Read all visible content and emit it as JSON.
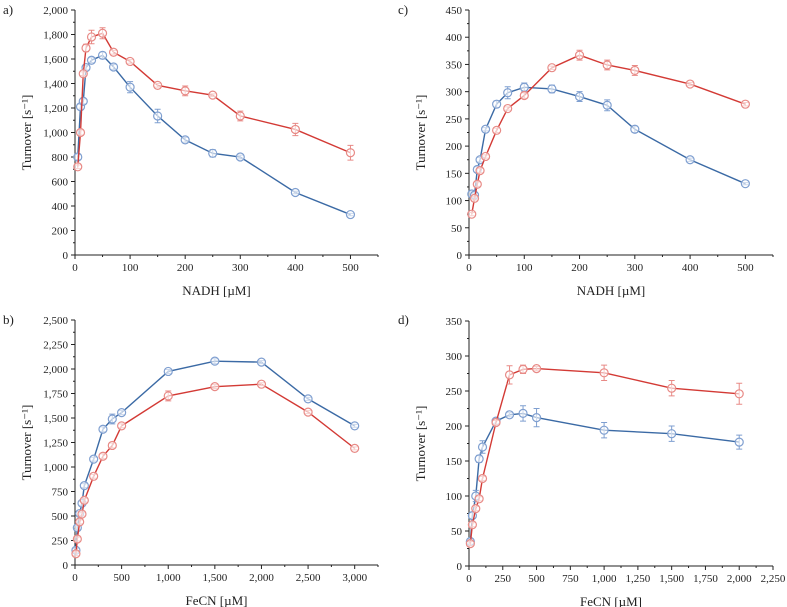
{
  "colors": {
    "blue": "#3b6aa5",
    "red": "#d33a35",
    "blue_marker": "#7f9fd0",
    "red_marker": "#e88a86"
  },
  "chart_data": [
    {
      "panel_label": "a)",
      "type": "line",
      "xlabel": "NADH [µM]",
      "ylabel": "Turnover [s⁻¹]",
      "xlim": [
        0,
        550
      ],
      "ylim": [
        0,
        2000
      ],
      "xticks": [
        0,
        100,
        200,
        300,
        400,
        500
      ],
      "xtick_labels": [
        "0",
        "100",
        "200",
        "300",
        "400",
        "500"
      ],
      "yticks": [
        0,
        200,
        400,
        600,
        800,
        1000,
        1200,
        1400,
        1600,
        1800,
        2000
      ],
      "ytick_labels": [
        "0",
        "200",
        "400",
        "600",
        "800",
        "1,000",
        "1,200",
        "1,400",
        "1,600",
        "1,800",
        "2,000"
      ],
      "series": [
        {
          "color": "blue",
          "x": [
            5,
            10,
            15,
            20,
            30,
            50,
            70,
            100,
            150,
            200,
            250,
            300,
            400,
            500
          ],
          "y": [
            800,
            1210,
            1255,
            1530,
            1590,
            1630,
            1535,
            1370,
            1135,
            940,
            830,
            800,
            510,
            330
          ],
          "err": [
            20,
            20,
            20,
            20,
            20,
            25,
            20,
            45,
            55,
            20,
            30,
            15,
            10,
            10
          ]
        },
        {
          "color": "red",
          "x": [
            5,
            10,
            15,
            20,
            30,
            50,
            70,
            100,
            150,
            200,
            250,
            300,
            400,
            500
          ],
          "y": [
            720,
            1000,
            1480,
            1690,
            1780,
            1810,
            1655,
            1580,
            1385,
            1340,
            1305,
            1135,
            1025,
            835
          ],
          "err": [
            15,
            20,
            15,
            30,
            55,
            45,
            15,
            15,
            15,
            40,
            10,
            40,
            50,
            60
          ]
        }
      ]
    },
    {
      "panel_label": "c)",
      "type": "line",
      "xlabel": "NADH [µM]",
      "ylabel": "Turnover [s⁻¹]",
      "xlim": [
        0,
        550
      ],
      "ylim": [
        0,
        450
      ],
      "xticks": [
        0,
        100,
        200,
        300,
        400,
        500
      ],
      "xtick_labels": [
        "0",
        "100",
        "200",
        "300",
        "400",
        "500"
      ],
      "yticks": [
        0,
        50,
        100,
        150,
        200,
        250,
        300,
        350,
        400,
        450
      ],
      "ytick_labels": [
        "0",
        "50",
        "100",
        "150",
        "200",
        "250",
        "300",
        "350",
        "400",
        "450"
      ],
      "series": [
        {
          "color": "blue",
          "x": [
            5,
            10,
            15,
            20,
            30,
            50,
            70,
            100,
            150,
            200,
            250,
            300,
            400,
            500
          ],
          "y": [
            112,
            110,
            157,
            175,
            231,
            277,
            298,
            308,
            305,
            291,
            275,
            231,
            175,
            131
          ],
          "err": [
            4,
            4,
            5,
            4,
            3,
            6,
            11,
            8,
            7,
            9,
            10,
            6,
            3,
            2
          ]
        },
        {
          "color": "red",
          "x": [
            5,
            10,
            15,
            20,
            30,
            50,
            70,
            100,
            150,
            200,
            250,
            300,
            400,
            500
          ],
          "y": [
            75,
            104,
            130,
            155,
            181,
            229,
            269,
            293,
            344,
            367,
            349,
            339,
            314,
            277
          ],
          "err": [
            3,
            3,
            4,
            4,
            3,
            4,
            3,
            5,
            3,
            9,
            9,
            9,
            3,
            3
          ]
        }
      ]
    },
    {
      "panel_label": "b)",
      "type": "line",
      "xlabel": "FeCN [µM]",
      "ylabel": "Turnover [s⁻¹]",
      "xlim": [
        0,
        3250
      ],
      "ylim": [
        0,
        2500
      ],
      "xticks": [
        0,
        500,
        1000,
        1500,
        2000,
        2500,
        3000
      ],
      "xtick_labels": [
        "0",
        "500",
        "1,000",
        "1,500",
        "2,000",
        "2,500",
        "3,000"
      ],
      "yticks": [
        0,
        250,
        500,
        750,
        1000,
        1250,
        1500,
        1750,
        2000,
        2250,
        2500
      ],
      "ytick_labels": [
        "0",
        "250",
        "500",
        "750",
        "1,000",
        "1,250",
        "1,500",
        "1,750",
        "2,000",
        "2,250",
        "2,500"
      ],
      "series": [
        {
          "color": "blue",
          "x": [
            10,
            25,
            50,
            75,
            100,
            200,
            300,
            400,
            500,
            1000,
            1500,
            2000,
            2500,
            3000
          ],
          "y": [
            150,
            380,
            525,
            630,
            810,
            1080,
            1385,
            1490,
            1555,
            1975,
            2080,
            2070,
            1695,
            1420
          ],
          "err": [
            20,
            20,
            20,
            20,
            20,
            20,
            25,
            50,
            20,
            20,
            25,
            15,
            15,
            15
          ]
        },
        {
          "color": "red",
          "x": [
            10,
            25,
            50,
            75,
            100,
            200,
            300,
            400,
            500,
            1000,
            1500,
            2000,
            2500,
            3000
          ],
          "y": [
            115,
            265,
            440,
            520,
            660,
            905,
            1110,
            1220,
            1420,
            1725,
            1820,
            1845,
            1560,
            1190
          ],
          "err": [
            20,
            20,
            20,
            20,
            20,
            20,
            25,
            25,
            20,
            50,
            20,
            15,
            15,
            15
          ]
        }
      ]
    },
    {
      "panel_label": "d)",
      "type": "line",
      "xlabel": "FeCN [µM]",
      "ylabel": "Turnover [s⁻¹]",
      "xlim": [
        0,
        2250
      ],
      "ylim": [
        0,
        350
      ],
      "xticks": [
        0,
        250,
        500,
        750,
        1000,
        1250,
        1500,
        1750,
        2000,
        2250
      ],
      "xtick_labels": [
        "0",
        "250",
        "500",
        "750",
        "1,000",
        "1,250",
        "1,500",
        "1,750",
        "2,000",
        "2,250"
      ],
      "yticks": [
        0,
        50,
        100,
        150,
        200,
        250,
        300,
        350
      ],
      "ytick_labels": [
        "0",
        "50",
        "100",
        "150",
        "200",
        "250",
        "300",
        "350"
      ],
      "series": [
        {
          "color": "blue",
          "x": [
            10,
            25,
            50,
            75,
            100,
            200,
            300,
            400,
            500,
            1000,
            1500,
            2000
          ],
          "y": [
            35,
            72,
            100,
            153,
            170,
            207,
            216,
            218,
            212,
            194,
            189,
            177
          ],
          "err": [
            4,
            4,
            8,
            5,
            9,
            4,
            3,
            11,
            13,
            11,
            11,
            10
          ]
        },
        {
          "color": "red",
          "x": [
            10,
            25,
            50,
            75,
            100,
            200,
            300,
            400,
            500,
            1000,
            1500,
            2000
          ],
          "y": [
            32,
            59,
            82,
            96,
            125,
            205,
            273,
            281,
            282,
            276,
            254,
            246
          ],
          "err": [
            3,
            3,
            3,
            3,
            3,
            3,
            13,
            6,
            3,
            11,
            11,
            15
          ]
        }
      ]
    }
  ]
}
